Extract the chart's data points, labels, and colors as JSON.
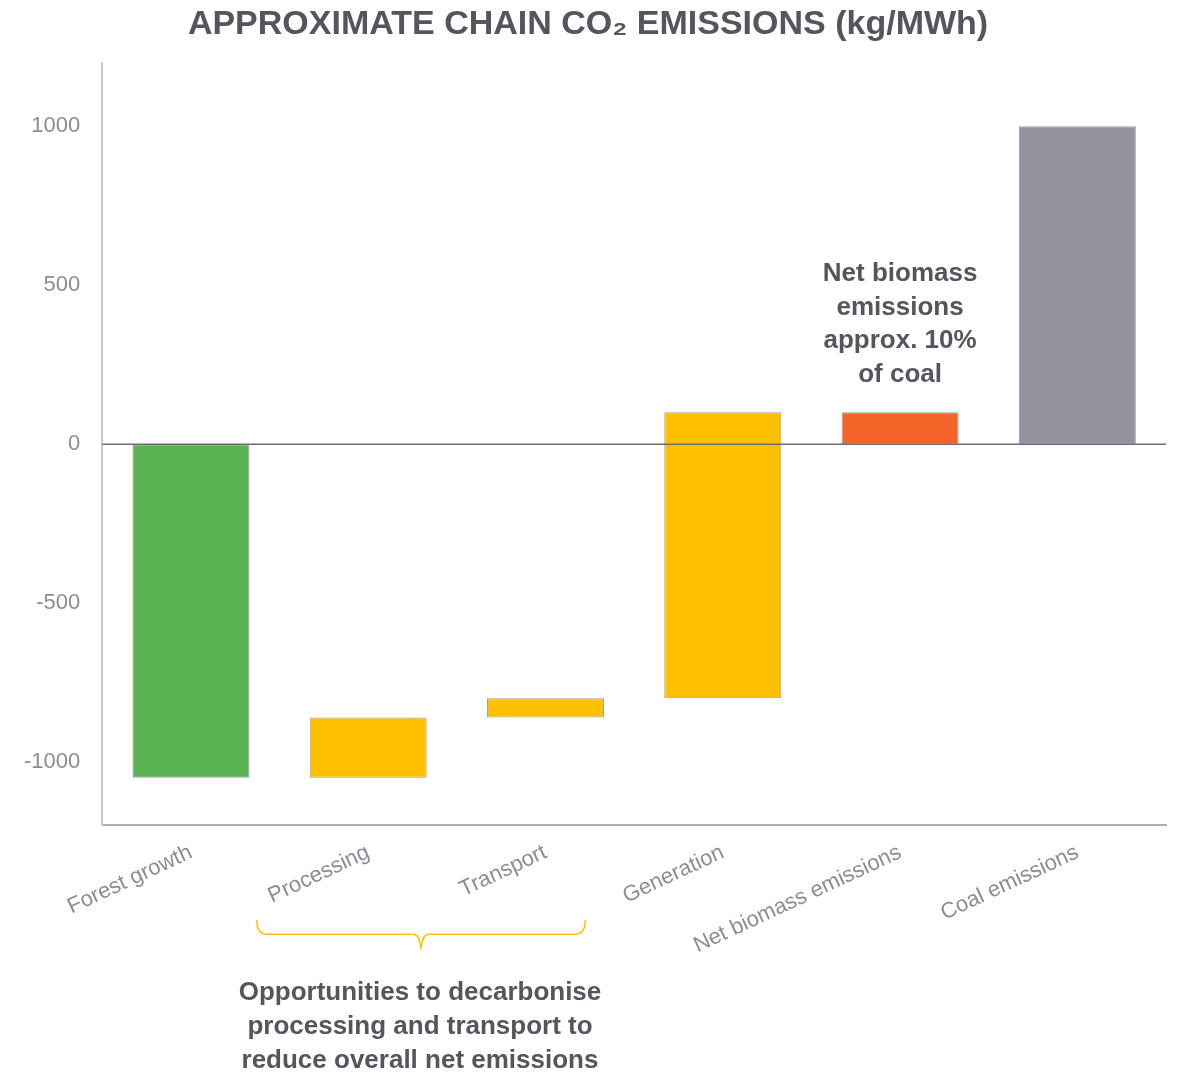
{
  "chart_data": {
    "type": "bar",
    "title": "APPROXIMATE CHAIN CO₂ EMISSIONS (kg/MWh)",
    "categories": [
      "Forest growth",
      "Processing",
      "Transport",
      "Generation",
      "Net biomass emissions",
      "Coal emissions"
    ],
    "base": [
      0,
      -1050,
      -860,
      -800,
      0,
      0
    ],
    "values": [
      -1050,
      190,
      60,
      900,
      100,
      1000
    ],
    "colors": [
      "#5ab352",
      "#ffc000",
      "#ffc000",
      "#ffc000",
      "#f26427",
      "#93939e"
    ],
    "ylim": [
      -1200,
      1200
    ],
    "yticks": [
      -1000,
      -500,
      0,
      500,
      1000
    ],
    "annotations": [
      {
        "text": "Net biomass emissions approx. 10% of coal",
        "x": "Net biomass emissions",
        "y": 100
      },
      "Opportunities to decarbonise processing and transport to reduce overall net emissions"
    ]
  }
}
